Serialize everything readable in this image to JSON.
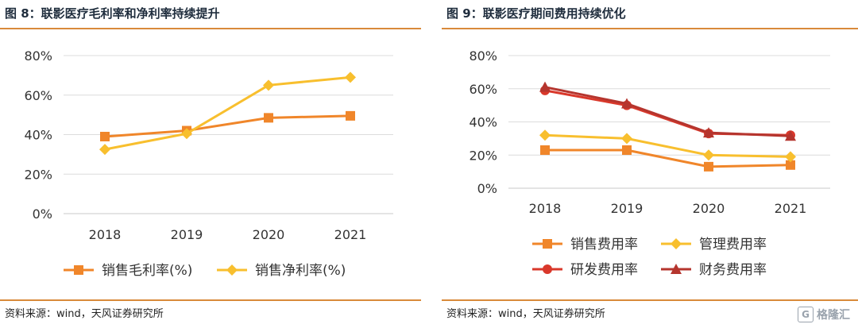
{
  "charts": [
    {
      "title": "图 8：联影医疗毛利率和净利率持续提升",
      "source": "资料来源：wind，天风证券研究所",
      "chart_data": {
        "type": "line",
        "categories": [
          "2018",
          "2019",
          "2020",
          "2021"
        ],
        "yticks": [
          "0%",
          "20%",
          "40%",
          "60%",
          "80%"
        ],
        "ylim": [
          0,
          80
        ],
        "grid": true,
        "legend": "bottom",
        "series": [
          {
            "name": "销售毛利率(%)",
            "values": [
              39,
              42,
              48.5,
              49.5
            ],
            "color": "#f0862a",
            "marker": "square"
          },
          {
            "name": "销售净利率(%)",
            "values": [
              32.5,
              40.5,
              65,
              69
            ],
            "color": "#f8bf2e",
            "marker": "diamond"
          }
        ]
      }
    },
    {
      "title": "图 9：联影医疗期间费用持续优化",
      "source": "资料来源：wind，天风证券研究所",
      "chart_data": {
        "type": "line",
        "categories": [
          "2018",
          "2019",
          "2020",
          "2021"
        ],
        "yticks": [
          "0%",
          "20%",
          "40%",
          "60%",
          "80%"
        ],
        "ylim": [
          0,
          80
        ],
        "grid": true,
        "legend": "bottom",
        "series": [
          {
            "name": "销售费用率",
            "values": [
              23,
              23,
              13,
              14
            ],
            "color": "#f0862a",
            "marker": "square"
          },
          {
            "name": "管理费用率",
            "values": [
              32,
              30,
              20,
              19
            ],
            "color": "#f8bf2e",
            "marker": "diamond"
          },
          {
            "name": "研发费用率",
            "values": [
              59,
              50,
              33,
              32
            ],
            "color": "#d9382b",
            "marker": "circle"
          },
          {
            "name": "财务费用率",
            "values": [
              61,
              51,
              33.5,
              31.5
            ],
            "color": "#b5352e",
            "marker": "triangle"
          }
        ]
      }
    }
  ],
  "watermark": {
    "icon": "G",
    "text": "格隆汇"
  }
}
